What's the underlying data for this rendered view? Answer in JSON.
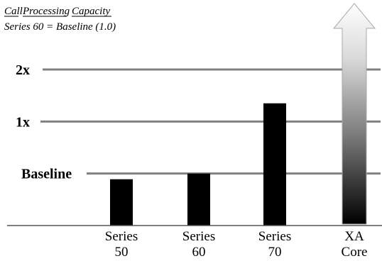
{
  "chart_data": {
    "type": "bar",
    "title": "Call  Processing  Capacity",
    "title_words": [
      "Call",
      "Processing",
      "Capacity"
    ],
    "subtitle": "Series 60 = Baseline (1.0)",
    "reference_lines": [
      {
        "label": "Baseline",
        "value": 1.0
      },
      {
        "label": "1x",
        "value": 2.0
      },
      {
        "label": "2x",
        "value": 3.0
      }
    ],
    "categories": [
      {
        "line1": "Series",
        "line2": "50"
      },
      {
        "line1": "Series",
        "line2": "60"
      },
      {
        "line1": "Series",
        "line2": "70"
      },
      {
        "line1": "XA",
        "line2": "Core"
      }
    ],
    "values": [
      0.89,
      1.0,
      2.35,
      null
    ],
    "arrow_category": "XA Core",
    "arrow_style": "gradient-upward-arrow",
    "bar_color": "#000000",
    "gridline_color": "#808080",
    "ylim": [
      0,
      3.25
    ]
  }
}
